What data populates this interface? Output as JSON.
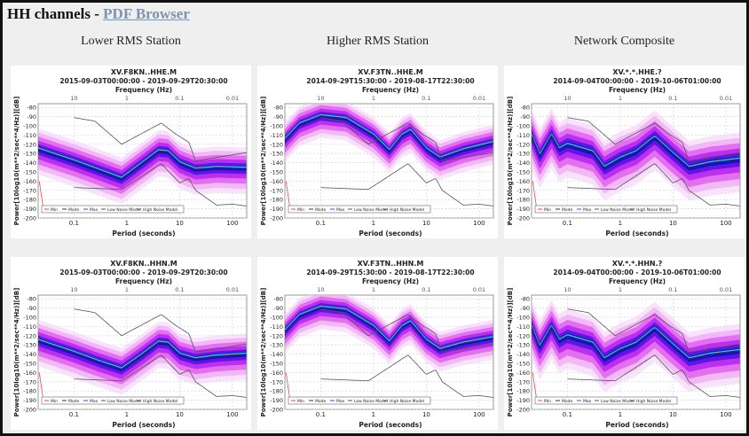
{
  "header": {
    "title": "HH channels - ",
    "link_label": "PDF Browser"
  },
  "columns": [
    "Lower RMS Station",
    "Higher RMS Station",
    "Network Composite"
  ],
  "colors": {
    "min": "#ff4040",
    "mode": "#333333",
    "max": "#4040ff",
    "noise_model": "#555555",
    "pdf_outer": "#e070f0",
    "pdf_inner": "#1010c0"
  },
  "plot_common": {
    "freq_label": "Frequency (Hz)",
    "period_label": "Period (seconds)",
    "ylabel": "Power[10log10(m**2/sec**4/Hz)][dB]",
    "freq_ticks": [
      "10",
      "1",
      "0.1",
      "0.01"
    ],
    "period_ticks": [
      "0.1",
      "1",
      "10",
      "100"
    ],
    "y_ticks": [
      "-80",
      "-90",
      "-100",
      "-110",
      "-120",
      "-130",
      "-140",
      "-150",
      "-160",
      "-170",
      "-180",
      "-190",
      "-200"
    ],
    "ylim": [
      -76,
      -200
    ],
    "xlim_period": [
      0.021,
      186
    ],
    "x_scale": "log",
    "legend": [
      "Min",
      "Mode",
      "Max",
      "Low Noise Model",
      "High Noise Model"
    ],
    "nlnm": [
      [
        0.1,
        -167
      ],
      [
        0.8,
        -169
      ],
      [
        4.5,
        -141
      ],
      [
        10,
        -162
      ],
      [
        15,
        -157
      ],
      [
        20,
        -170
      ],
      [
        50,
        -186
      ],
      [
        100,
        -185
      ],
      [
        186,
        -187
      ]
    ],
    "nhnm": [
      [
        0.1,
        -91
      ],
      [
        0.25,
        -95
      ],
      [
        0.8,
        -120
      ],
      [
        4.5,
        -97
      ],
      [
        8,
        -108
      ],
      [
        15,
        -118
      ],
      [
        20,
        -138
      ],
      [
        186,
        -129
      ]
    ]
  },
  "plots": [
    {
      "title": "XV.F8KN..HHE.M",
      "range": "2015-09-03T00:00:00 - 2019-09-29T20:30:00",
      "mode": [
        [
          0.021,
          -125
        ],
        [
          0.03,
          -128
        ],
        [
          0.1,
          -138
        ],
        [
          0.3,
          -148
        ],
        [
          0.8,
          -157
        ],
        [
          2,
          -140
        ],
        [
          4,
          -127
        ],
        [
          6,
          -128
        ],
        [
          10,
          -140
        ],
        [
          20,
          -147
        ],
        [
          50,
          -145
        ],
        [
          186,
          -146
        ]
      ],
      "spread": 14
    },
    {
      "title": "XV.F3TN..HHE.M",
      "range": "2014-09-29T15:30:00 - 2019-08-17T22:30:00",
      "mode": [
        [
          0.021,
          -115
        ],
        [
          0.04,
          -98
        ],
        [
          0.1,
          -89
        ],
        [
          0.3,
          -92
        ],
        [
          1,
          -110
        ],
        [
          2,
          -127
        ],
        [
          3.5,
          -110
        ],
        [
          5,
          -105
        ],
        [
          10,
          -125
        ],
        [
          18,
          -135
        ],
        [
          50,
          -126
        ],
        [
          186,
          -118
        ]
      ],
      "spread": 12
    },
    {
      "title": "XV.*.*.HHE.?",
      "range": "2014-09-04T00:00:00 - 2019-10-06T01:00:00",
      "mode": [
        [
          0.021,
          -110
        ],
        [
          0.03,
          -132
        ],
        [
          0.05,
          -110
        ],
        [
          0.07,
          -125
        ],
        [
          0.1,
          -120
        ],
        [
          0.3,
          -128
        ],
        [
          0.5,
          -145
        ],
        [
          1,
          -135
        ],
        [
          2,
          -128
        ],
        [
          4.5,
          -112
        ],
        [
          10,
          -130
        ],
        [
          20,
          -145
        ],
        [
          50,
          -140
        ],
        [
          186,
          -136
        ]
      ],
      "spread": 18
    },
    {
      "title": "XV.F8KN..HHN.M",
      "range": "2015-09-03T00:00:00 - 2019-09-29T20:30:00",
      "mode": [
        [
          0.021,
          -125
        ],
        [
          0.03,
          -128
        ],
        [
          0.1,
          -138
        ],
        [
          0.3,
          -148
        ],
        [
          0.8,
          -156
        ],
        [
          2,
          -140
        ],
        [
          4,
          -127
        ],
        [
          6,
          -128
        ],
        [
          10,
          -140
        ],
        [
          20,
          -145
        ],
        [
          50,
          -142
        ],
        [
          186,
          -140
        ]
      ],
      "spread": 14
    },
    {
      "title": "XV.F3TN..HHN.M",
      "range": "2014-09-29T15:30:00 - 2019-08-17T22:30:00",
      "mode": [
        [
          0.021,
          -115
        ],
        [
          0.04,
          -98
        ],
        [
          0.1,
          -89
        ],
        [
          0.3,
          -92
        ],
        [
          1,
          -110
        ],
        [
          2,
          -127
        ],
        [
          3.5,
          -110
        ],
        [
          5,
          -105
        ],
        [
          10,
          -125
        ],
        [
          18,
          -135
        ],
        [
          50,
          -128
        ],
        [
          186,
          -122
        ]
      ],
      "spread": 12
    },
    {
      "title": "XV.*.*.HHN.?",
      "range": "2014-09-04T00:00:00 - 2019-10-06T01:00:00",
      "mode": [
        [
          0.021,
          -110
        ],
        [
          0.03,
          -132
        ],
        [
          0.05,
          -110
        ],
        [
          0.07,
          -125
        ],
        [
          0.1,
          -120
        ],
        [
          0.3,
          -128
        ],
        [
          0.5,
          -145
        ],
        [
          1,
          -135
        ],
        [
          2,
          -128
        ],
        [
          4.5,
          -112
        ],
        [
          10,
          -130
        ],
        [
          20,
          -145
        ],
        [
          50,
          -140
        ],
        [
          186,
          -136
        ]
      ],
      "spread": 18
    }
  ]
}
